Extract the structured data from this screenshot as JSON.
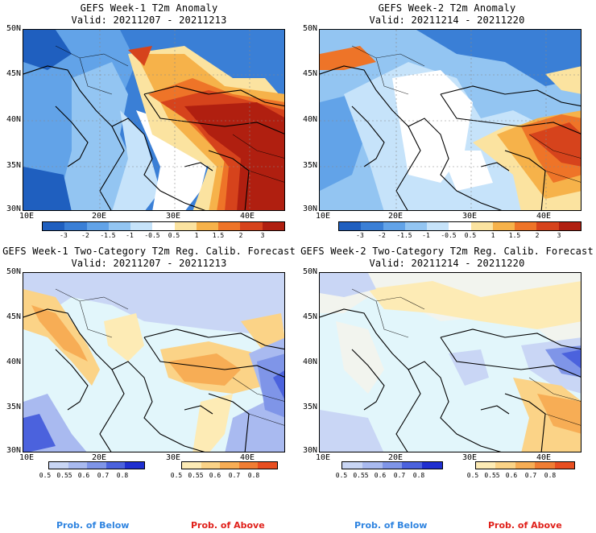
{
  "panels": [
    {
      "title": "GEFS Week-1 T2m Anomaly",
      "valid": "Valid: 20211207 - 20211213"
    },
    {
      "title": "GEFS Week-2 T2m Anomaly",
      "valid": "Valid: 20211214 - 20211220"
    },
    {
      "title": "GEFS Week-1 Two-Category T2m Reg. Calib. Forecast",
      "valid": "Valid: 20211207 - 20211213"
    },
    {
      "title": "GEFS Week-2 Two-Category T2m Reg. Calib. Forecast",
      "valid": "Valid: 20211214 - 20211220"
    }
  ],
  "axes": {
    "lat_labels": [
      "50N",
      "45N",
      "40N",
      "35N",
      "30N"
    ],
    "lon_labels": [
      "10E",
      "20E",
      "30E",
      "40E"
    ]
  },
  "anomaly_scale": {
    "ticks": [
      "-3",
      "-2",
      "-1.5",
      "-1",
      "-0.5",
      "0.5",
      "1",
      "1.5",
      "2",
      "3"
    ],
    "colors": [
      "#1f5fbf",
      "#3a7fd6",
      "#62a3e8",
      "#93c5f2",
      "#c6e3fa",
      "#ffffff",
      "#fbe3a0",
      "#f6b24a",
      "#ee7428",
      "#d6431c",
      "#b01f10"
    ]
  },
  "prob_scale": {
    "below_ticks": [
      "0.5",
      "0.55",
      "0.6",
      "0.7",
      "0.8"
    ],
    "above_ticks": [
      "0.5",
      "0.55",
      "0.6",
      "0.7",
      "0.8"
    ],
    "below_colors": [
      "#c9d6f5",
      "#a9baf0",
      "#7f95e8",
      "#4b62dd",
      "#1f2fd0"
    ],
    "above_colors": [
      "#fdebb5",
      "#fbd387",
      "#f7ad55",
      "#f07d33",
      "#e84e20"
    ],
    "below_label": "Prob. of Below",
    "above_label": "Prob. of Above",
    "below_label_color": "#2f84e0",
    "above_label_color": "#e0201a"
  },
  "colors": {
    "sea_pale": "#e2f6fb",
    "land_pale": "#f2f4ee"
  }
}
